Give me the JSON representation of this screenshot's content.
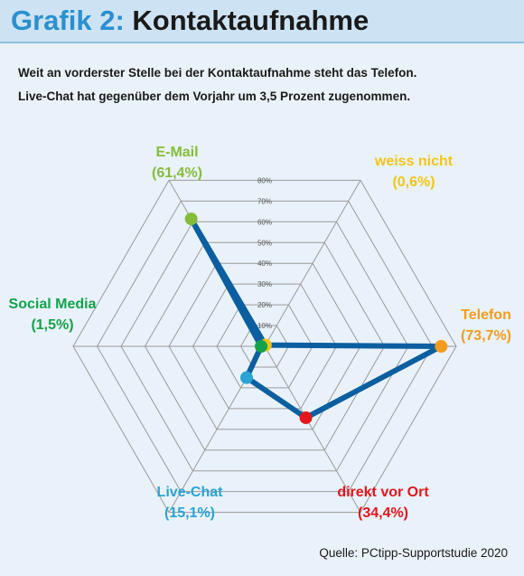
{
  "header": {
    "title_prefix": "Grafik 2:",
    "title_main": "Kontaktaufnahme"
  },
  "subtitle": {
    "line1": "Weit an vorderster Stelle bei der Kontaktaufnahme steht das Telefon.",
    "line2": "Live-Chat hat gegenüber dem Vorjahr um 3,5 Prozent zugenommen."
  },
  "source": "Quelle: PCtipp-Supportstudie 2020",
  "colors": {
    "header_bg": "#cde3f4",
    "title_accent": "#2a8fd0",
    "series_line": "#0b5fa0",
    "grid": "#9a9a9a"
  },
  "chart_data": {
    "type": "radar",
    "rmax": 80,
    "ticks": [
      "10%",
      "20%",
      "30%",
      "40%",
      "50%",
      "60%",
      "70%",
      "80%"
    ],
    "tick_values": [
      10,
      20,
      30,
      40,
      50,
      60,
      70,
      80
    ],
    "axes": [
      {
        "label": "weiss nicht",
        "value_label": "(0,6%)",
        "value": 0.6,
        "color": "#f2c417"
      },
      {
        "label": "Telefon",
        "value_label": "(73,7%)",
        "value": 73.7,
        "color": "#f49b1c"
      },
      {
        "label": "direkt vor Ort",
        "value_label": "(34,4%)",
        "value": 34.4,
        "color": "#e3161b"
      },
      {
        "label": "Live-Chat",
        "value_label": "(15,1%)",
        "value": 15.1,
        "color": "#2aa3d6"
      },
      {
        "label": "Social Media",
        "value_label": "(1,5%)",
        "value": 1.5,
        "color": "#14a24b"
      },
      {
        "label": "E-Mail",
        "value_label": "(61,4%)",
        "value": 61.4,
        "color": "#86bb3c"
      }
    ]
  }
}
